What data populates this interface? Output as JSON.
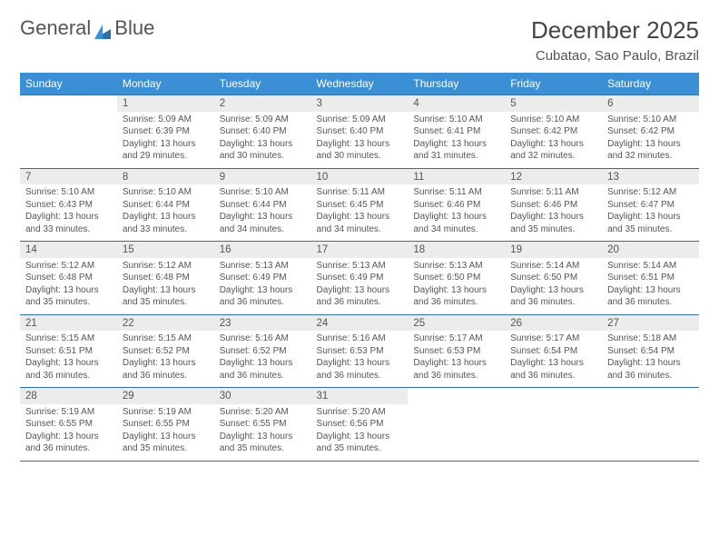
{
  "logo": {
    "part1": "General",
    "part2": "Blue"
  },
  "title": "December 2025",
  "location": "Cubatao, Sao Paulo, Brazil",
  "colors": {
    "header_bg": "#3b8fd4",
    "header_text": "#ffffff",
    "daynum_bg": "#ececec",
    "rule": "#2f6fa8",
    "text": "#555555",
    "page_bg": "#ffffff",
    "logo_sail": "#2f6fa8"
  },
  "day_headers": [
    "Sunday",
    "Monday",
    "Tuesday",
    "Wednesday",
    "Thursday",
    "Friday",
    "Saturday"
  ],
  "weeks": [
    [
      null,
      {
        "n": "1",
        "sr": "5:09 AM",
        "ss": "6:39 PM",
        "dl": "13 hours and 29 minutes."
      },
      {
        "n": "2",
        "sr": "5:09 AM",
        "ss": "6:40 PM",
        "dl": "13 hours and 30 minutes."
      },
      {
        "n": "3",
        "sr": "5:09 AM",
        "ss": "6:40 PM",
        "dl": "13 hours and 30 minutes."
      },
      {
        "n": "4",
        "sr": "5:10 AM",
        "ss": "6:41 PM",
        "dl": "13 hours and 31 minutes."
      },
      {
        "n": "5",
        "sr": "5:10 AM",
        "ss": "6:42 PM",
        "dl": "13 hours and 32 minutes."
      },
      {
        "n": "6",
        "sr": "5:10 AM",
        "ss": "6:42 PM",
        "dl": "13 hours and 32 minutes."
      }
    ],
    [
      {
        "n": "7",
        "sr": "5:10 AM",
        "ss": "6:43 PM",
        "dl": "13 hours and 33 minutes."
      },
      {
        "n": "8",
        "sr": "5:10 AM",
        "ss": "6:44 PM",
        "dl": "13 hours and 33 minutes."
      },
      {
        "n": "9",
        "sr": "5:10 AM",
        "ss": "6:44 PM",
        "dl": "13 hours and 34 minutes."
      },
      {
        "n": "10",
        "sr": "5:11 AM",
        "ss": "6:45 PM",
        "dl": "13 hours and 34 minutes."
      },
      {
        "n": "11",
        "sr": "5:11 AM",
        "ss": "6:46 PM",
        "dl": "13 hours and 34 minutes."
      },
      {
        "n": "12",
        "sr": "5:11 AM",
        "ss": "6:46 PM",
        "dl": "13 hours and 35 minutes."
      },
      {
        "n": "13",
        "sr": "5:12 AM",
        "ss": "6:47 PM",
        "dl": "13 hours and 35 minutes."
      }
    ],
    [
      {
        "n": "14",
        "sr": "5:12 AM",
        "ss": "6:48 PM",
        "dl": "13 hours and 35 minutes."
      },
      {
        "n": "15",
        "sr": "5:12 AM",
        "ss": "6:48 PM",
        "dl": "13 hours and 35 minutes."
      },
      {
        "n": "16",
        "sr": "5:13 AM",
        "ss": "6:49 PM",
        "dl": "13 hours and 36 minutes."
      },
      {
        "n": "17",
        "sr": "5:13 AM",
        "ss": "6:49 PM",
        "dl": "13 hours and 36 minutes."
      },
      {
        "n": "18",
        "sr": "5:13 AM",
        "ss": "6:50 PM",
        "dl": "13 hours and 36 minutes."
      },
      {
        "n": "19",
        "sr": "5:14 AM",
        "ss": "6:50 PM",
        "dl": "13 hours and 36 minutes."
      },
      {
        "n": "20",
        "sr": "5:14 AM",
        "ss": "6:51 PM",
        "dl": "13 hours and 36 minutes."
      }
    ],
    [
      {
        "n": "21",
        "sr": "5:15 AM",
        "ss": "6:51 PM",
        "dl": "13 hours and 36 minutes."
      },
      {
        "n": "22",
        "sr": "5:15 AM",
        "ss": "6:52 PM",
        "dl": "13 hours and 36 minutes."
      },
      {
        "n": "23",
        "sr": "5:16 AM",
        "ss": "6:52 PM",
        "dl": "13 hours and 36 minutes."
      },
      {
        "n": "24",
        "sr": "5:16 AM",
        "ss": "6:53 PM",
        "dl": "13 hours and 36 minutes."
      },
      {
        "n": "25",
        "sr": "5:17 AM",
        "ss": "6:53 PM",
        "dl": "13 hours and 36 minutes."
      },
      {
        "n": "26",
        "sr": "5:17 AM",
        "ss": "6:54 PM",
        "dl": "13 hours and 36 minutes."
      },
      {
        "n": "27",
        "sr": "5:18 AM",
        "ss": "6:54 PM",
        "dl": "13 hours and 36 minutes."
      }
    ],
    [
      {
        "n": "28",
        "sr": "5:19 AM",
        "ss": "6:55 PM",
        "dl": "13 hours and 36 minutes."
      },
      {
        "n": "29",
        "sr": "5:19 AM",
        "ss": "6:55 PM",
        "dl": "13 hours and 35 minutes."
      },
      {
        "n": "30",
        "sr": "5:20 AM",
        "ss": "6:55 PM",
        "dl": "13 hours and 35 minutes."
      },
      {
        "n": "31",
        "sr": "5:20 AM",
        "ss": "6:56 PM",
        "dl": "13 hours and 35 minutes."
      },
      null,
      null,
      null
    ]
  ],
  "labels": {
    "sunrise": "Sunrise:",
    "sunset": "Sunset:",
    "daylight": "Daylight:"
  }
}
